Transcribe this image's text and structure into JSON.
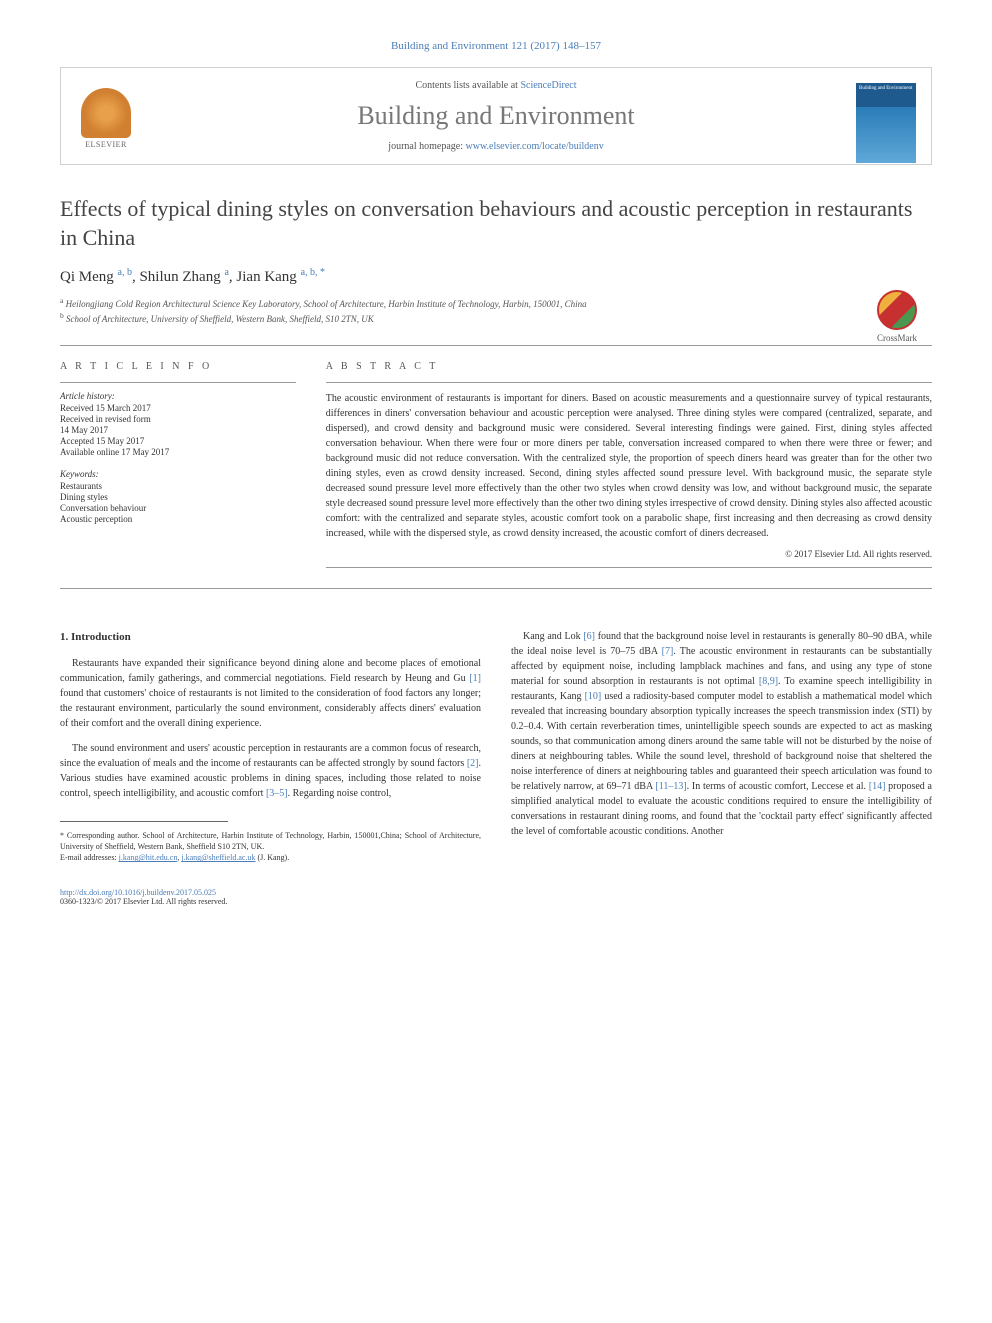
{
  "citation": "Building and Environment 121 (2017) 148–157",
  "header": {
    "contents_prefix": "Contents lists available at ",
    "contents_link": "ScienceDirect",
    "journal_title": "Building and Environment",
    "homepage_prefix": "journal homepage: ",
    "homepage_link": "www.elsevier.com/locate/buildenv",
    "publisher_name": "ELSEVIER",
    "cover_text": "Building and Environment"
  },
  "crossmark": "CrossMark",
  "article": {
    "title": "Effects of typical dining styles on conversation behaviours and acoustic perception in restaurants in China",
    "authors_html": "Qi Meng <sup>a, b</sup>, Shilun Zhang <sup>a</sup>, Jian Kang <sup>a, b, *</sup>",
    "affiliations": [
      "a Heilongjiang Cold Region Architectural Science Key Laboratory, School of Architecture, Harbin Institute of Technology, Harbin, 150001, China",
      "b School of Architecture, University of Sheffield, Western Bank, Sheffield, S10 2TN, UK"
    ]
  },
  "article_info": {
    "heading": "A R T I C L E  I N F O",
    "history_label": "Article history:",
    "history": [
      "Received 15 March 2017",
      "Received in revised form",
      "14 May 2017",
      "Accepted 15 May 2017",
      "Available online 17 May 2017"
    ],
    "keywords_label": "Keywords:",
    "keywords": [
      "Restaurants",
      "Dining styles",
      "Conversation behaviour",
      "Acoustic perception"
    ]
  },
  "abstract": {
    "heading": "A B S T R A C T",
    "text": "The acoustic environment of restaurants is important for diners. Based on acoustic measurements and a questionnaire survey of typical restaurants, differences in diners' conversation behaviour and acoustic perception were analysed. Three dining styles were compared (centralized, separate, and dispersed), and crowd density and background music were considered. Several interesting findings were gained. First, dining styles affected conversation behaviour. When there were four or more diners per table, conversation increased compared to when there were three or fewer; and background music did not reduce conversation. With the centralized style, the proportion of speech diners heard was greater than for the other two dining styles, even as crowd density increased. Second, dining styles affected sound pressure level. With background music, the separate style decreased sound pressure level more effectively than the other two styles when crowd density was low, and without background music, the separate style decreased sound pressure level more effectively than the other two dining styles irrespective of crowd density. Dining styles also affected acoustic comfort: with the centralized and separate styles, acoustic comfort took on a parabolic shape, first increasing and then decreasing as crowd density increased, while with the dispersed style, as crowd density increased, the acoustic comfort of diners decreased.",
    "copyright": "© 2017 Elsevier Ltd. All rights reserved."
  },
  "body": {
    "section_heading": "1. Introduction",
    "col1_p1": "Restaurants have expanded their significance beyond dining alone and become places of emotional communication, family gatherings, and commercial negotiations. Field research by Heung and Gu [1] found that customers' choice of restaurants is not limited to the consideration of food factors any longer; the restaurant environment, particularly the sound environment, considerably affects diners' evaluation of their comfort and the overall dining experience.",
    "col1_p2": "The sound environment and users' acoustic perception in restaurants are a common focus of research, since the evaluation of meals and the income of restaurants can be affected strongly by sound factors [2]. Various studies have examined acoustic problems in dining spaces, including those related to noise control, speech intelligibility, and acoustic comfort [3–5]. Regarding noise control,",
    "col2_p1": "Kang and Lok [6] found that the background noise level in restaurants is generally 80–90 dBA, while the ideal noise level is 70–75 dBA [7]. The acoustic environment in restaurants can be substantially affected by equipment noise, including lampblack machines and fans, and using any type of stone material for sound absorption in restaurants is not optimal [8,9]. To examine speech intelligibility in restaurants, Kang [10] used a radiosity-based computer model to establish a mathematical model which revealed that increasing boundary absorption typically increases the speech transmission index (STI) by 0.2–0.4. With certain reverberation times, unintelligible speech sounds are expected to act as masking sounds, so that communication among diners around the same table will not be disturbed by the noise of diners at neighbouring tables. While the sound level, threshold of background noise that sheltered the noise interference of diners at neighbouring tables and guaranteed their speech articulation was found to be relatively narrow, at 69–71 dBA [11–13]. In terms of acoustic comfort, Leccese et al. [14] proposed a simplified analytical model to evaluate the acoustic conditions required to ensure the intelligibility of conversations in restaurant dining rooms, and found that the 'cocktail party effect' significantly affected the level of comfortable acoustic conditions. Another"
  },
  "footnote": {
    "corresponding": "* Corresponding author. School of Architecture, Harbin Institute of Technology, Harbin, 150001,China; School of Architecture, University of Sheffield, Western Bank, Sheffield S10 2TN, UK.",
    "email_label": "E-mail addresses: ",
    "email1": "j.kang@hit.edu.cn",
    "email2": "j.kang@sheffield.ac.uk",
    "email_suffix": " (J. Kang)."
  },
  "footer": {
    "doi": "http://dx.doi.org/10.1016/j.buildenv.2017.05.025",
    "issn_copyright": "0360-1323/© 2017 Elsevier Ltd. All rights reserved."
  },
  "refs": {
    "r1": "[1]",
    "r2": "[2]",
    "r35": "[3–5]",
    "r6": "[6]",
    "r7": "[7]",
    "r89": "[8,9]",
    "r10": "[10]",
    "r1113": "[11–13]",
    "r14": "[14]"
  }
}
